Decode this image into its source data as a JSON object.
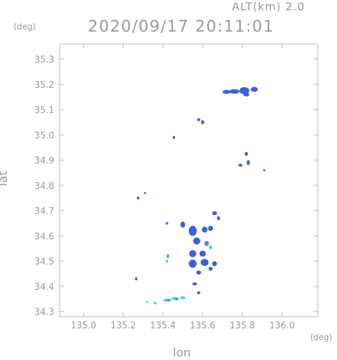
{
  "header": {
    "altitude_label": "ALT(km)  2.0",
    "timestamp": "2020/09/17 20:11:01"
  },
  "axes": {
    "y_unit": "(deg)",
    "x_unit": "(deg)",
    "x_title": "lon",
    "y_title": "lat"
  },
  "chart_data": {
    "type": "heatmap",
    "title": "2020/09/17 20:11:01",
    "xlabel": "lon",
    "ylabel": "lat",
    "xlim": [
      134.88,
      136.18
    ],
    "ylim": [
      34.28,
      35.36
    ],
    "x_ticks": [
      "135.0",
      "135.2",
      "135.4",
      "135.6",
      "135.8",
      "136.0"
    ],
    "y_ticks": [
      "34.3",
      "34.4",
      "34.5",
      "34.6",
      "34.7",
      "34.8",
      "34.9",
      "35.0",
      "35.1",
      "35.2",
      "35.3"
    ],
    "grid": false,
    "colors": {
      "weak": "#3f5fe0",
      "moderate": "#5a86ea",
      "light": "#40d8e8",
      "axis": "#b8b8b8"
    },
    "echo_cells": [
      {
        "lon": 135.72,
        "lat": 35.17,
        "rw": 0.02,
        "rh": 0.008,
        "level": "weak"
      },
      {
        "lon": 135.76,
        "lat": 35.172,
        "rw": 0.025,
        "rh": 0.009,
        "level": "weak"
      },
      {
        "lon": 135.81,
        "lat": 35.175,
        "rw": 0.025,
        "rh": 0.014,
        "level": "weak"
      },
      {
        "lon": 135.86,
        "lat": 35.18,
        "rw": 0.018,
        "rh": 0.01,
        "level": "weak"
      },
      {
        "lon": 135.82,
        "lat": 35.16,
        "rw": 0.015,
        "rh": 0.008,
        "level": "weak"
      },
      {
        "lon": 135.58,
        "lat": 35.06,
        "rw": 0.008,
        "rh": 0.006,
        "level": "weak"
      },
      {
        "lon": 135.6,
        "lat": 35.05,
        "rw": 0.008,
        "rh": 0.008,
        "level": "weak"
      },
      {
        "lon": 135.455,
        "lat": 34.99,
        "rw": 0.006,
        "rh": 0.006,
        "level": "weak"
      },
      {
        "lon": 135.82,
        "lat": 34.925,
        "rw": 0.008,
        "rh": 0.008,
        "level": "weak"
      },
      {
        "lon": 135.79,
        "lat": 34.88,
        "rw": 0.01,
        "rh": 0.006,
        "level": "weak"
      },
      {
        "lon": 135.83,
        "lat": 34.89,
        "rw": 0.008,
        "rh": 0.01,
        "level": "weak"
      },
      {
        "lon": 135.91,
        "lat": 34.86,
        "rw": 0.005,
        "rh": 0.004,
        "level": "weak"
      },
      {
        "lon": 135.275,
        "lat": 34.75,
        "rw": 0.006,
        "rh": 0.006,
        "level": "weak"
      },
      {
        "lon": 135.31,
        "lat": 34.77,
        "rw": 0.004,
        "rh": 0.004,
        "level": "weak"
      },
      {
        "lon": 135.66,
        "lat": 34.69,
        "rw": 0.012,
        "rh": 0.008,
        "level": "weak"
      },
      {
        "lon": 135.68,
        "lat": 34.67,
        "rw": 0.008,
        "rh": 0.008,
        "level": "weak"
      },
      {
        "lon": 135.42,
        "lat": 34.65,
        "rw": 0.007,
        "rh": 0.006,
        "level": "moderate"
      },
      {
        "lon": 135.5,
        "lat": 34.645,
        "rw": 0.012,
        "rh": 0.012,
        "level": "weak"
      },
      {
        "lon": 135.55,
        "lat": 34.62,
        "rw": 0.02,
        "rh": 0.02,
        "level": "weak"
      },
      {
        "lon": 135.61,
        "lat": 34.625,
        "rw": 0.014,
        "rh": 0.012,
        "level": "weak"
      },
      {
        "lon": 135.64,
        "lat": 34.63,
        "rw": 0.012,
        "rh": 0.01,
        "level": "weak"
      },
      {
        "lon": 135.57,
        "lat": 34.58,
        "rw": 0.018,
        "rh": 0.014,
        "level": "weak"
      },
      {
        "lon": 135.62,
        "lat": 34.57,
        "rw": 0.012,
        "rh": 0.01,
        "level": "moderate"
      },
      {
        "lon": 135.64,
        "lat": 34.555,
        "rw": 0.008,
        "rh": 0.008,
        "level": "light"
      },
      {
        "lon": 135.55,
        "lat": 34.53,
        "rw": 0.018,
        "rh": 0.014,
        "level": "weak"
      },
      {
        "lon": 135.6,
        "lat": 34.53,
        "rw": 0.016,
        "rh": 0.012,
        "level": "weak"
      },
      {
        "lon": 135.55,
        "lat": 34.49,
        "rw": 0.02,
        "rh": 0.016,
        "level": "weak"
      },
      {
        "lon": 135.61,
        "lat": 34.495,
        "rw": 0.02,
        "rh": 0.014,
        "level": "weak"
      },
      {
        "lon": 135.66,
        "lat": 34.49,
        "rw": 0.012,
        "rh": 0.01,
        "level": "weak"
      },
      {
        "lon": 135.58,
        "lat": 34.455,
        "rw": 0.012,
        "rh": 0.008,
        "level": "weak"
      },
      {
        "lon": 135.64,
        "lat": 34.47,
        "rw": 0.01,
        "rh": 0.008,
        "level": "weak"
      },
      {
        "lon": 135.425,
        "lat": 34.52,
        "rw": 0.006,
        "rh": 0.008,
        "level": "moderate"
      },
      {
        "lon": 135.42,
        "lat": 34.5,
        "rw": 0.006,
        "rh": 0.006,
        "level": "light"
      },
      {
        "lon": 135.56,
        "lat": 34.41,
        "rw": 0.012,
        "rh": 0.006,
        "level": "weak"
      },
      {
        "lon": 135.58,
        "lat": 34.375,
        "rw": 0.008,
        "rh": 0.006,
        "level": "weak"
      },
      {
        "lon": 135.265,
        "lat": 34.43,
        "rw": 0.006,
        "rh": 0.006,
        "level": "weak"
      },
      {
        "lon": 135.32,
        "lat": 34.337,
        "rw": 0.006,
        "rh": 0.004,
        "level": "light"
      },
      {
        "lon": 135.36,
        "lat": 34.334,
        "rw": 0.008,
        "rh": 0.005,
        "level": "light"
      },
      {
        "lon": 135.42,
        "lat": 34.345,
        "rw": 0.02,
        "rh": 0.006,
        "level": "light"
      },
      {
        "lon": 135.46,
        "lat": 34.352,
        "rw": 0.02,
        "rh": 0.006,
        "level": "light"
      },
      {
        "lon": 135.5,
        "lat": 34.355,
        "rw": 0.014,
        "rh": 0.006,
        "level": "light"
      },
      {
        "lon": 135.43,
        "lat": 34.346,
        "rw": 0.01,
        "rh": 0.005,
        "level": "moderate"
      },
      {
        "lon": 135.47,
        "lat": 34.35,
        "rw": 0.008,
        "rh": 0.005,
        "level": "moderate"
      }
    ]
  }
}
